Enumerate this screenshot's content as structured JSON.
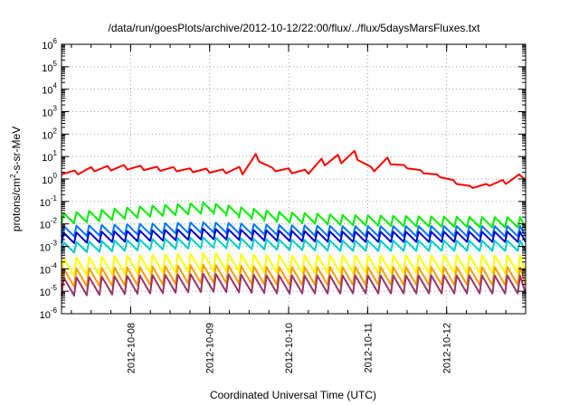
{
  "chart_data": {
    "type": "line",
    "title": "/data/run/goesPlots/archive/2012-10-12/22:00/flux/../flux/5daysMarsFluxes.txt",
    "xlabel": "Coordinated Universal Time (UTC)",
    "ylabel": {
      "pre": "protons/cm",
      "sup": "2",
      "post": "-s-sr-MeV"
    },
    "y_scale": "log",
    "ylim": [
      1e-06,
      1000000.0
    ],
    "xlim": [
      "2012-10-07 03:00",
      "2012-10-13 00:00"
    ],
    "grid": true,
    "legend": "none",
    "y_ticks": [
      {
        "base": "10",
        "exp": "-6"
      },
      {
        "base": "10",
        "exp": "-5"
      },
      {
        "base": "10",
        "exp": "-4"
      },
      {
        "base": "10",
        "exp": "-3"
      },
      {
        "base": "10",
        "exp": "-2"
      },
      {
        "base": "10",
        "exp": "-1"
      },
      {
        "base": "10",
        "exp": "0"
      },
      {
        "base": "10",
        "exp": "1"
      },
      {
        "base": "10",
        "exp": "2"
      },
      {
        "base": "10",
        "exp": "3"
      },
      {
        "base": "10",
        "exp": "4"
      },
      {
        "base": "10",
        "exp": "5"
      },
      {
        "base": "10",
        "exp": "6"
      }
    ],
    "x_ticks": [
      "2012-10-08",
      "2012-10-09",
      "2012-10-10",
      "2012-10-11",
      "2012-10-12"
    ],
    "series": [
      {
        "color": "#ff0000",
        "x": [
          "2012-10-07 03:00",
          "2012-10-07 07:00",
          "2012-10-07 08:00",
          "2012-10-07 12:00",
          "2012-10-07 13:00",
          "2012-10-07 17:00",
          "2012-10-07 18:00",
          "2012-10-07 22:00",
          "2012-10-07 23:00",
          "2012-10-08 03:00",
          "2012-10-08 04:00",
          "2012-10-08 08:00",
          "2012-10-08 09:00",
          "2012-10-08 13:00",
          "2012-10-08 14:00",
          "2012-10-08 18:00",
          "2012-10-08 19:00",
          "2012-10-08 23:00",
          "2012-10-09 00:00",
          "2012-10-09 04:00",
          "2012-10-09 05:00",
          "2012-10-09 09:00",
          "2012-10-09 10:00",
          "2012-10-09 14:00",
          "2012-10-09 15:00",
          "2012-10-09 19:00",
          "2012-10-09 20:00",
          "2012-10-10 00:00",
          "2012-10-10 01:00",
          "2012-10-10 05:00",
          "2012-10-10 06:00",
          "2012-10-10 10:00",
          "2012-10-10 11:00",
          "2012-10-10 15:00",
          "2012-10-10 16:00",
          "2012-10-10 20:00",
          "2012-10-10 21:00",
          "2012-10-11 01:00",
          "2012-10-11 02:00",
          "2012-10-11 06:00",
          "2012-10-11 07:00",
          "2012-10-11 11:00",
          "2012-10-11 12:00",
          "2012-10-11 16:00",
          "2012-10-11 17:00",
          "2012-10-11 21:00",
          "2012-10-11 22:00",
          "2012-10-12 02:00",
          "2012-10-12 03:00",
          "2012-10-12 07:00",
          "2012-10-12 08:00",
          "2012-10-12 12:00",
          "2012-10-12 13:00",
          "2012-10-12 17:00",
          "2012-10-12 18:00",
          "2012-10-12 22:00",
          "2012-10-12 23:00",
          "2012-10-13 00:00"
        ],
        "y": [
          1.6,
          2.4,
          1.6,
          3.4,
          2.2,
          3.8,
          2.4,
          4.2,
          2.6,
          3.9,
          2.5,
          3.5,
          2.3,
          3.4,
          2.2,
          3.0,
          2.0,
          2.9,
          1.9,
          2.7,
          1.8,
          3.5,
          1.6,
          13,
          6,
          3.2,
          2.2,
          3.0,
          1.8,
          2.6,
          1.7,
          8,
          4,
          12,
          5,
          18,
          7,
          3.5,
          2.2,
          9,
          4.5,
          4.2,
          3.0,
          2.5,
          1.8,
          1.6,
          1.2,
          0.9,
          0.6,
          0.5,
          0.4,
          0.6,
          0.5,
          0.9,
          0.6,
          1.6,
          1.2,
          0.9
        ]
      },
      {
        "color": "#00ee00",
        "x": [
          "2012-10-07 03:00",
          "2012-10-08 02:00",
          "2012-10-08 22:00",
          "2012-10-09 19:00",
          "2012-10-10 16:00",
          "2012-10-11 13:00",
          "2012-10-12 10:00",
          "2012-10-13 00:00"
        ],
        "y": [
          0.03,
          0.06,
          0.09,
          0.035,
          0.025,
          0.022,
          0.02,
          0.02
        ]
      },
      {
        "color": "#0077ff",
        "x": [
          "2012-10-07 03:00",
          "2012-10-08 02:00",
          "2012-10-08 22:00",
          "2012-10-09 19:00",
          "2012-10-10 16:00",
          "2012-10-11 13:00",
          "2012-10-12 10:00",
          "2012-10-13 00:00"
        ],
        "y": [
          0.008,
          0.01,
          0.012,
          0.009,
          0.008,
          0.008,
          0.008,
          0.008
        ]
      },
      {
        "color": "#0000cc",
        "x": [
          "2012-10-07 03:00",
          "2012-10-08 02:00",
          "2012-10-08 22:00",
          "2012-10-09 19:00",
          "2012-10-10 16:00",
          "2012-10-11 13:00",
          "2012-10-12 10:00",
          "2012-10-13 00:00"
        ],
        "y": [
          0.004,
          0.005,
          0.006,
          0.005,
          0.0045,
          0.0045,
          0.0045,
          0.0045
        ]
      },
      {
        "color": "#00cccc",
        "x": [
          "2012-10-07 03:00",
          "2012-10-08 02:00",
          "2012-10-08 22:00",
          "2012-10-09 19:00",
          "2012-10-10 16:00",
          "2012-10-11 13:00",
          "2012-10-12 10:00",
          "2012-10-13 00:00"
        ],
        "y": [
          0.0015,
          0.002,
          0.0025,
          0.002,
          0.0018,
          0.0018,
          0.0018,
          0.0018
        ]
      },
      {
        "color": "#ffff00",
        "x": [
          "2012-10-07 03:00",
          "2012-10-08 02:00",
          "2012-10-08 22:00",
          "2012-10-09 19:00",
          "2012-10-10 16:00",
          "2012-10-11 13:00",
          "2012-10-12 10:00",
          "2012-10-13 00:00"
        ],
        "y": [
          0.0003,
          0.0004,
          0.0005,
          0.0004,
          0.0004,
          0.0004,
          0.0004,
          0.0004
        ]
      },
      {
        "color": "#ff9900",
        "x": [
          "2012-10-07 03:00",
          "2012-10-08 02:00",
          "2012-10-08 22:00",
          "2012-10-09 19:00",
          "2012-10-10 16:00",
          "2012-10-11 13:00",
          "2012-10-12 10:00",
          "2012-10-13 00:00"
        ],
        "y": [
          0.0001,
          0.00012,
          0.00015,
          0.00012,
          0.00012,
          0.00012,
          0.00012,
          0.00012
        ]
      },
      {
        "color": "#993366",
        "x": [
          "2012-10-07 03:00",
          "2012-10-08 02:00",
          "2012-10-08 22:00",
          "2012-10-09 19:00",
          "2012-10-10 16:00",
          "2012-10-11 13:00",
          "2012-10-12 10:00",
          "2012-10-13 00:00"
        ],
        "y": [
          4e-05,
          5e-05,
          6e-05,
          5e-05,
          5e-05,
          5e-05,
          5e-05,
          5e-05
        ]
      }
    ]
  }
}
